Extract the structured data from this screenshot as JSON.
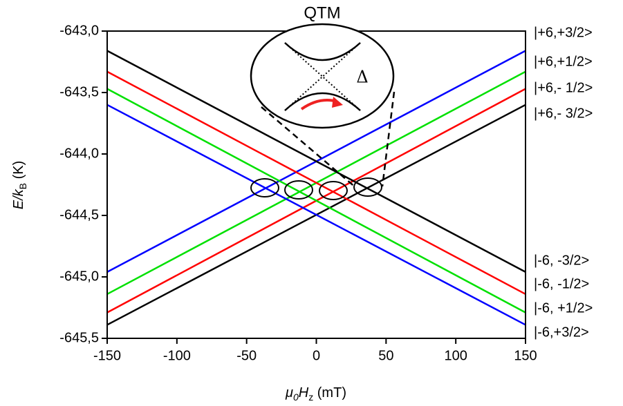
{
  "chart_data": {
    "type": "line",
    "title": "QTM",
    "annotation": "Δ",
    "xlabel": [
      "μ",
      "0",
      "H",
      "z",
      " (mT)"
    ],
    "ylabel": [
      "E/k",
      "B",
      " (K)"
    ],
    "x": [
      -150,
      150
    ],
    "xlim": [
      -150,
      150
    ],
    "xticks": [
      -150,
      -100,
      -50,
      0,
      50,
      100,
      150
    ],
    "ylim": [
      -645.5,
      -643.0
    ],
    "yticks": [
      {
        "value": -645.5,
        "label": "-645,5"
      },
      {
        "value": -645.0,
        "label": "-645,0"
      },
      {
        "value": -644.5,
        "label": "-644,5"
      },
      {
        "value": -644.0,
        "label": "-644,0"
      },
      {
        "value": -643.5,
        "label": "-643,5"
      },
      {
        "value": -643.0,
        "label": "-643,0"
      }
    ],
    "series": [
      {
        "name": "|+6,+3/2>",
        "color": "#0000ff",
        "values": [
          -644.96,
          -643.16
        ]
      },
      {
        "name": "|+6,+1/2>",
        "color": "#00e000",
        "values": [
          -645.14,
          -643.33
        ]
      },
      {
        "name": "|+6,- 1/2>",
        "color": "#ff0000",
        "values": [
          -645.29,
          -643.47
        ]
      },
      {
        "name": "|+6,- 3/2>",
        "color": "#000000",
        "values": [
          -645.39,
          -643.6
        ]
      },
      {
        "name": "|-6, -3/2>",
        "color": "#000000",
        "values": [
          -643.16,
          -644.96
        ]
      },
      {
        "name": "|-6, -1/2>",
        "color": "#ff0000",
        "values": [
          -643.33,
          -645.14
        ]
      },
      {
        "name": "|-6, +1/2>",
        "color": "#00e000",
        "values": [
          -643.47,
          -645.29
        ]
      },
      {
        "name": "|-6,+3/2>",
        "color": "#0000ff",
        "values": [
          -643.6,
          -645.39
        ]
      }
    ]
  }
}
